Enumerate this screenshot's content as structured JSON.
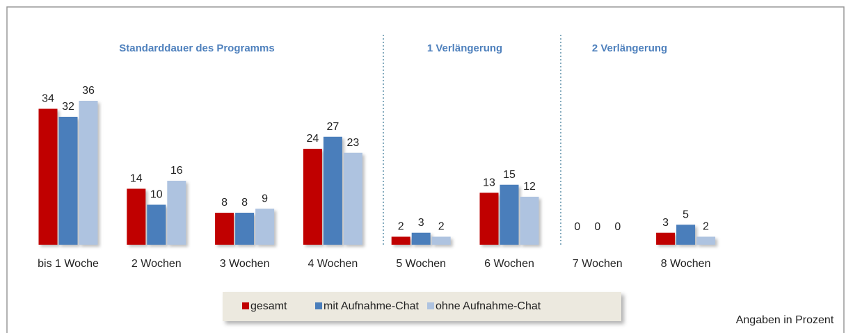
{
  "chart_data": {
    "type": "bar",
    "annotations": [
      "Standarddauer des Programms",
      "1 Verlängerung",
      "2 Verlängerung"
    ],
    "note": "Angaben in Prozent",
    "categories": [
      "bis 1 Woche",
      "2 Wochen",
      "3 Wochen",
      "4 Wochen",
      "5 Wochen",
      "6 Wochen",
      "7 Wochen",
      "8 Wochen"
    ],
    "series": [
      {
        "name": "gesamt",
        "color": "#c00000",
        "values": [
          34,
          14,
          8,
          24,
          2,
          13,
          0,
          3
        ]
      },
      {
        "name": "mit Aufnahme-Chat",
        "color": "#4a7ebb",
        "values": [
          32,
          10,
          8,
          27,
          3,
          15,
          0,
          5
        ]
      },
      {
        "name": "ohne Aufnahme-Chat",
        "color": "#aec3e0",
        "values": [
          36,
          16,
          9,
          23,
          2,
          12,
          0,
          2
        ]
      }
    ],
    "legend": "bottom"
  }
}
